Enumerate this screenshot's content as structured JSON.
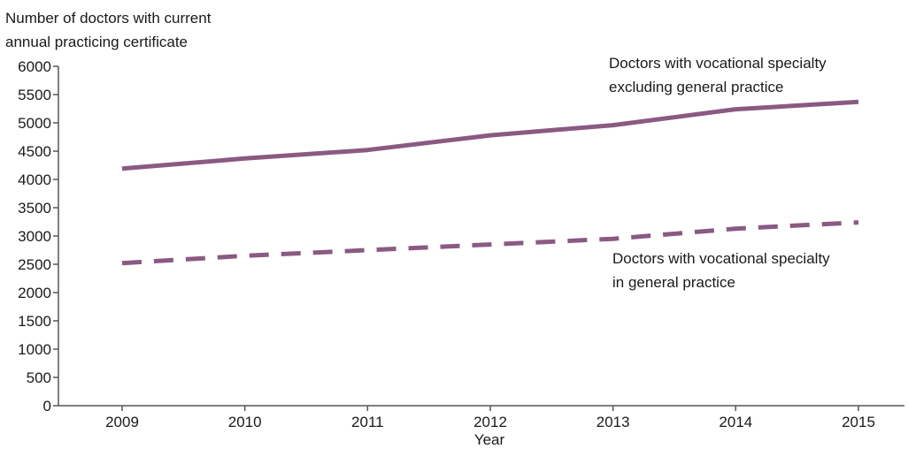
{
  "chart_data": {
    "type": "line",
    "title": "",
    "ylabel": [
      "Number of doctors with current",
      "annual practicing certificate"
    ],
    "xlabel": "Year",
    "x": [
      "2009",
      "2010",
      "2011",
      "2012",
      "2013",
      "2014",
      "2015"
    ],
    "ylim": [
      0,
      6000
    ],
    "yticks": [
      "0",
      "500",
      "1000",
      "1500",
      "2000",
      "2500",
      "3000",
      "3500",
      "4000",
      "4500",
      "5000",
      "5500",
      "6000"
    ],
    "grid": false,
    "line_color": "#8a5a83",
    "series": [
      {
        "name": [
          "Doctors with vocational specialty",
          "excluding general practice"
        ],
        "style": "solid",
        "values": [
          4190,
          4370,
          4520,
          4780,
          4960,
          5240,
          5370
        ]
      },
      {
        "name": [
          "Doctors with vocational specialty",
          "in general practice"
        ],
        "style": "dashed",
        "values": [
          2520,
          2650,
          2750,
          2850,
          2950,
          3130,
          3240
        ]
      }
    ]
  }
}
